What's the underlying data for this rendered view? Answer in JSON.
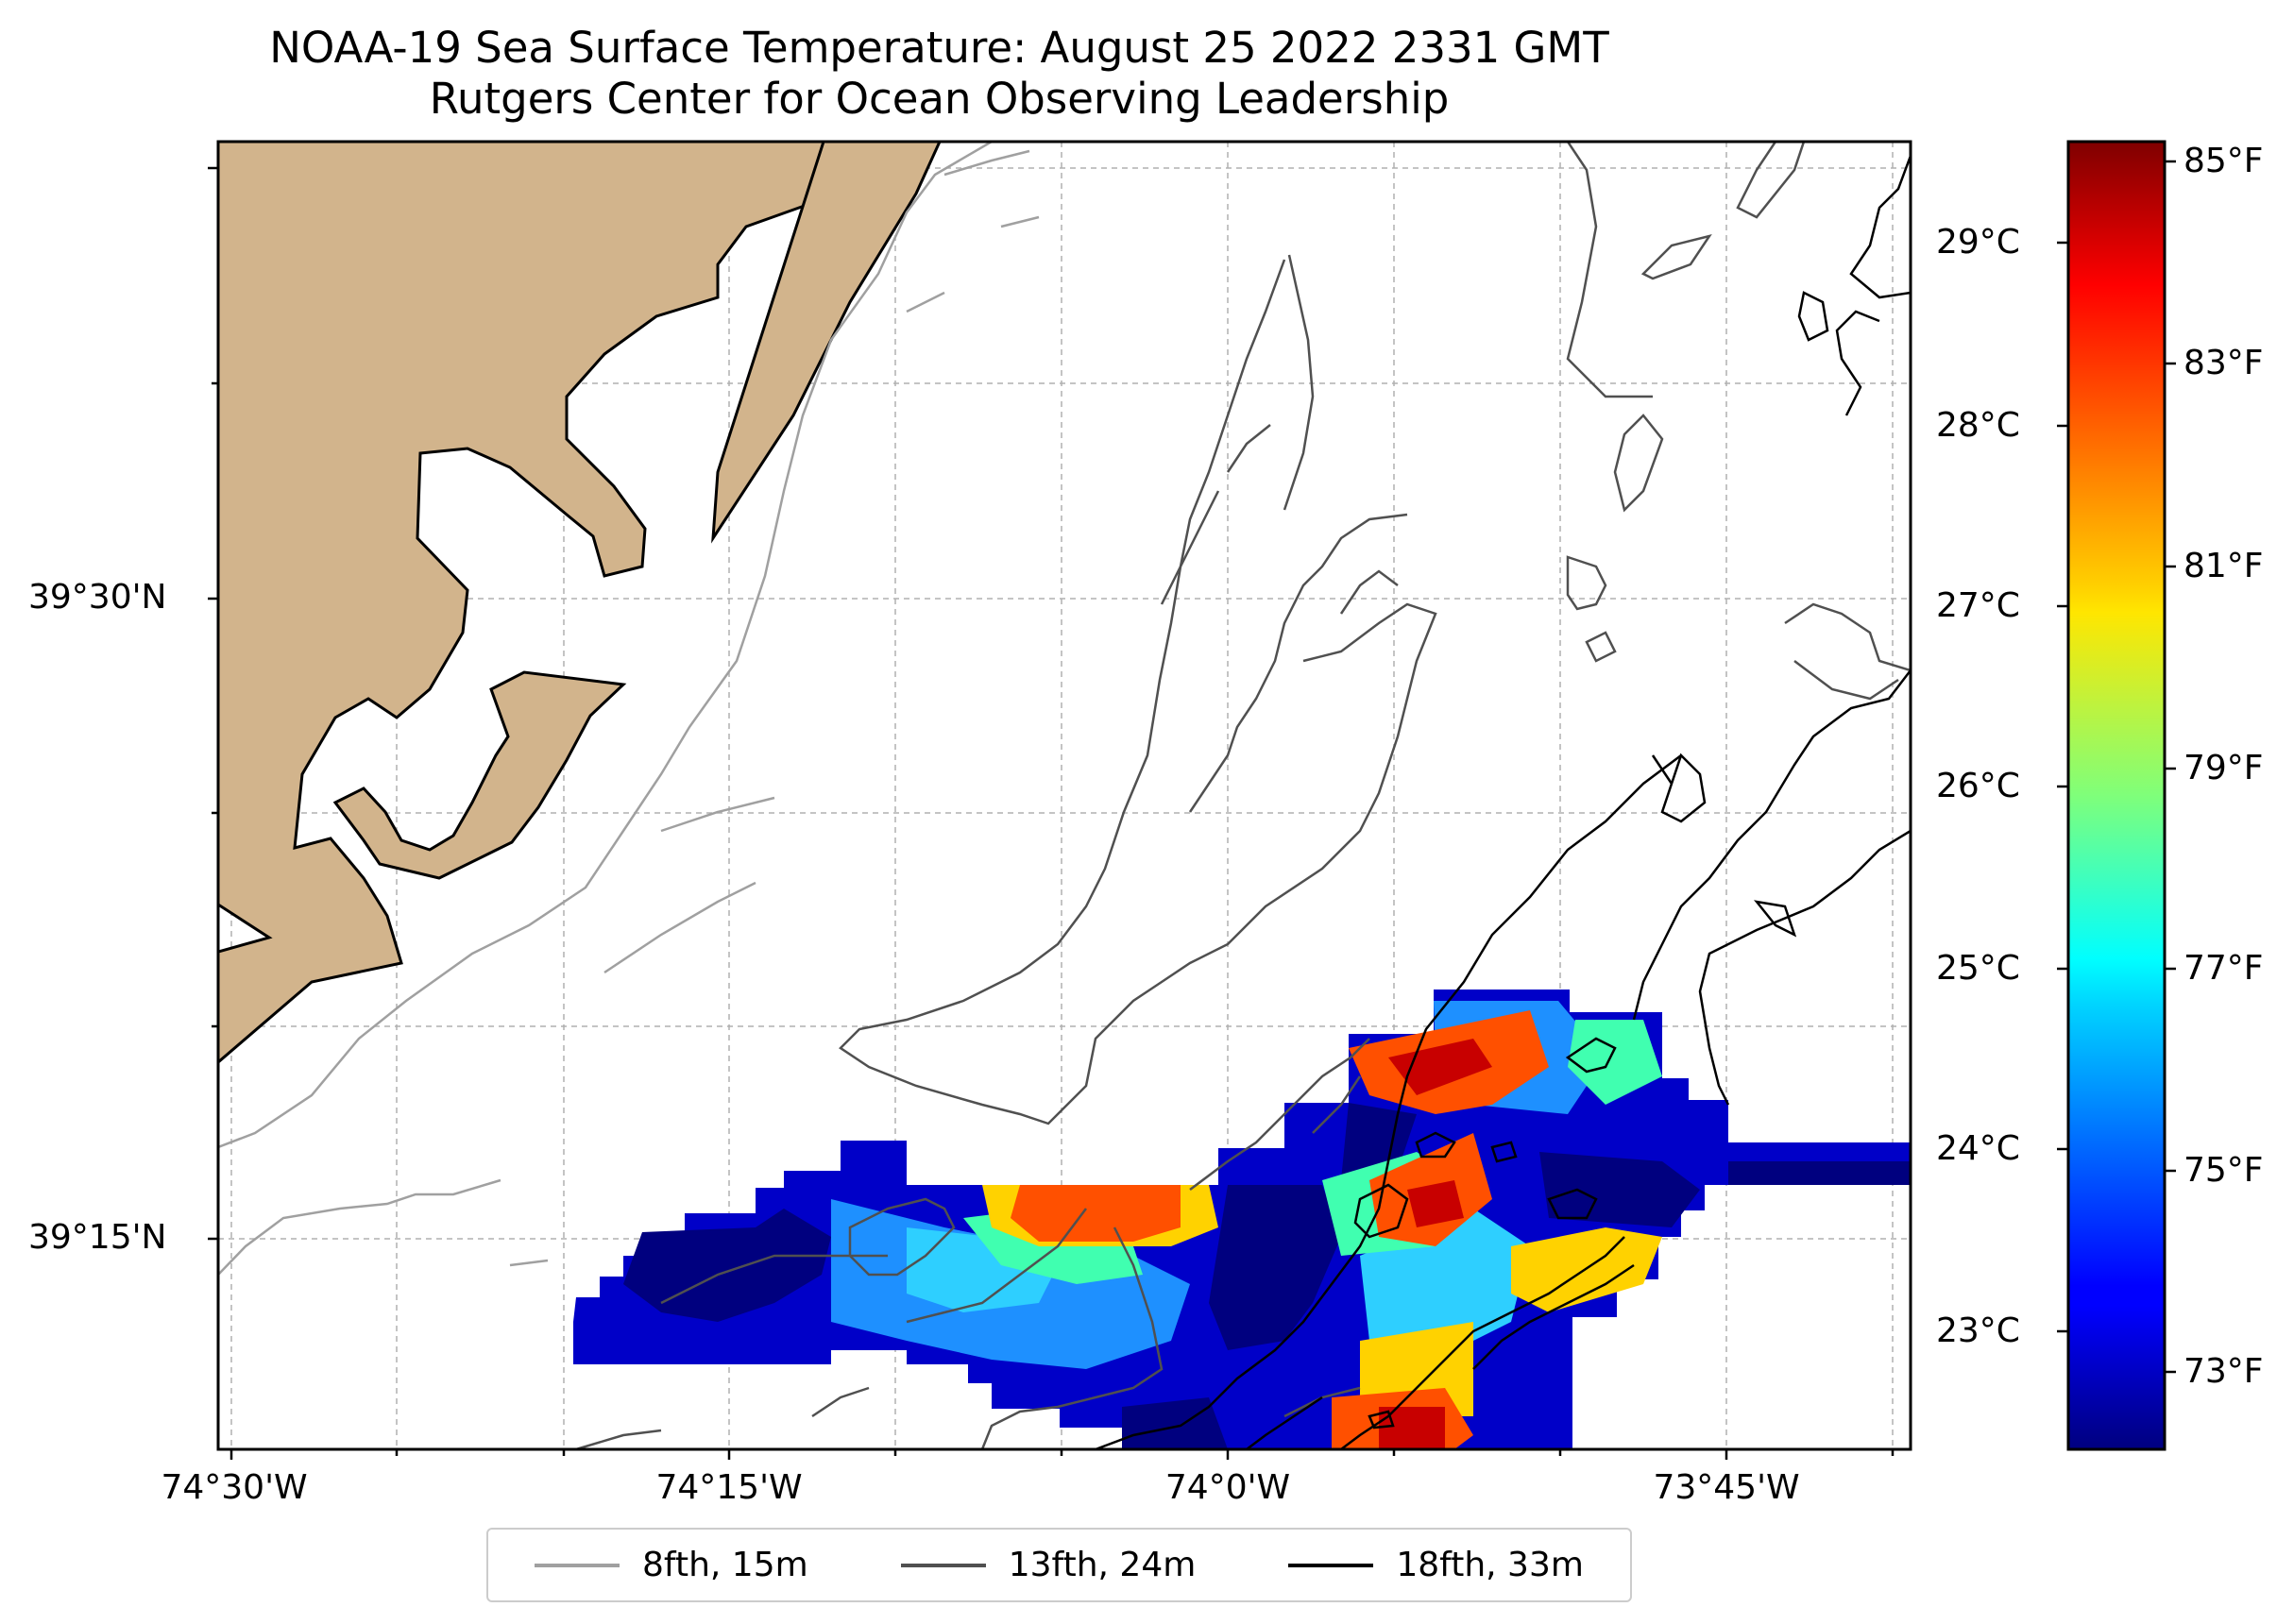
{
  "title": {
    "line1": "NOAA-19 Sea Surface Temperature: August 25 2022 2331 GMT",
    "line2": "Rutgers Center for Ocean Observing Leadership"
  },
  "axes": {
    "x_ticks": [
      "74°30'W",
      "74°15'W",
      "74°0'W",
      "73°45'W"
    ],
    "y_ticks": [
      "39°30'N",
      "39°15'N"
    ]
  },
  "colorbar": {
    "celsius_ticks": [
      "29°C",
      "28°C",
      "27°C",
      "26°C",
      "25°C",
      "24°C",
      "23°C"
    ],
    "fahrenheit_ticks": [
      "85°F",
      "83°F",
      "81°F",
      "79°F",
      "77°F",
      "75°F",
      "73°F"
    ],
    "range_f": [
      72.0,
      85.4
    ],
    "colormap": "jet"
  },
  "legend": [
    {
      "label": "8fth, 15m",
      "color": "#a0a0a0"
    },
    {
      "label": "13fth, 24m",
      "color": "#505050"
    },
    {
      "label": "18fth, 33m",
      "color": "#000000"
    }
  ],
  "colors": {
    "land": "#d2b48c",
    "grid": "#b0b0b0",
    "frame": "#000000"
  }
}
